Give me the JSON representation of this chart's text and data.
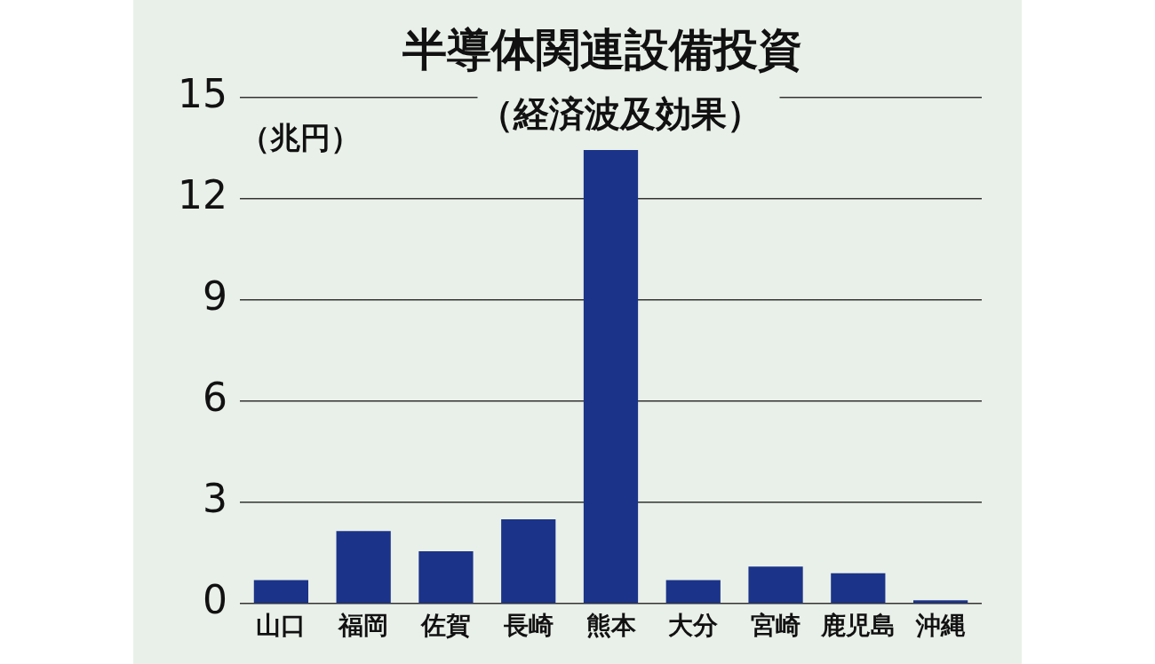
{
  "chart_data": {
    "type": "bar",
    "title": "半導体関連設備投資",
    "subtitle": "（経済波及効果）",
    "ylabel": "（兆円）",
    "categories": [
      "山口",
      "福岡",
      "佐賀",
      "長崎",
      "熊本",
      "大分",
      "宮崎",
      "鹿児島",
      "沖縄"
    ],
    "values": [
      0.7,
      2.15,
      1.55,
      2.5,
      13.45,
      0.7,
      1.1,
      0.9,
      0.1
    ],
    "color": "#1b3389",
    "ylim": [
      0,
      15
    ],
    "yticks": [
      0,
      3,
      6,
      9,
      12,
      15
    ],
    "grid": "y",
    "legend": false
  }
}
